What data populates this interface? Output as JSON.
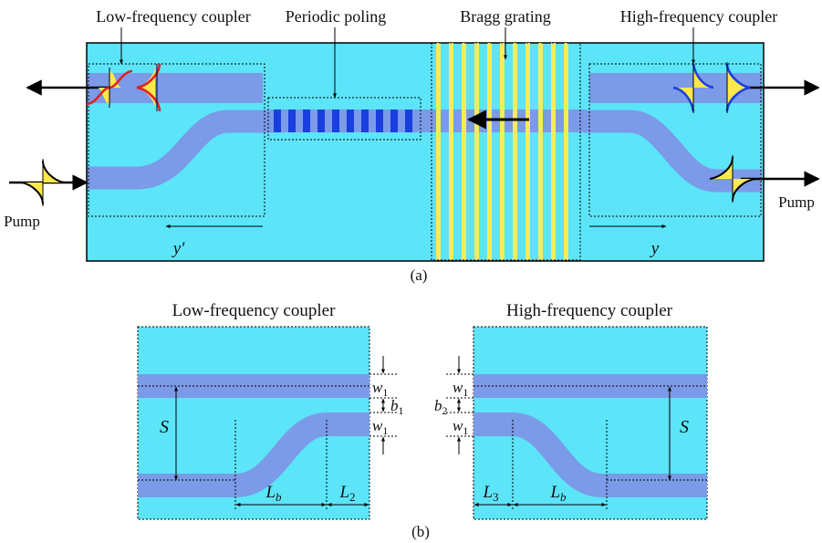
{
  "panel_a": {
    "labels": {
      "low_coupler": "Low-frequency coupler",
      "periodic_poling": "Periodic poling",
      "bragg_grating": "Bragg grating",
      "high_coupler": "High-frequency coupler",
      "pump_left": "Pump",
      "pump_right": "Pump",
      "y_prime": "y′",
      "y": "y"
    },
    "caption": "(a)"
  },
  "panel_b": {
    "low": {
      "title": "Low-frequency coupler",
      "w1_top": "w",
      "w1_top_sub": "1",
      "b1": "b",
      "b1_sub": "1",
      "w1_bottom": "w",
      "w1_bottom_sub": "1",
      "S": "S",
      "Lb": "L",
      "Lb_sub": "b",
      "L2": "L",
      "L2_sub": "2"
    },
    "high": {
      "title": "High-frequency coupler",
      "w1_top": "w",
      "w1_top_sub": "1",
      "b2": "b",
      "b2_sub": "2",
      "w1_bottom": "w",
      "w1_bottom_sub": "1",
      "S": "S",
      "L3": "L",
      "L3_sub": "3",
      "Lb": "L",
      "Lb_sub": "b"
    },
    "caption": "(b)"
  },
  "colors": {
    "chip": "#5ce4f8",
    "waveguide": "#7b9ae8",
    "poling": "#1a3ee0",
    "grating": "#f4ec5a",
    "pulse_fill": "#ffe84a",
    "pulse_red": "#e02020",
    "pulse_blue": "#1a3ee0"
  }
}
